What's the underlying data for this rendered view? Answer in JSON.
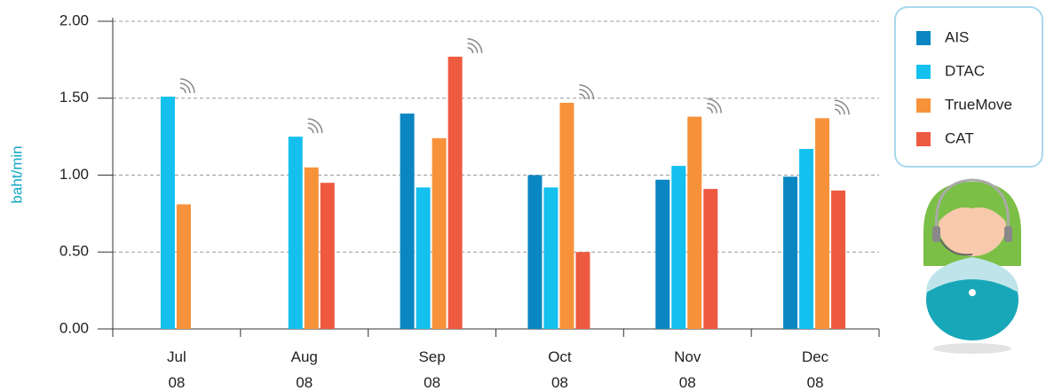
{
  "chart_data": {
    "type": "bar",
    "y_label": "baht/min",
    "categories": [
      "Jul 08",
      "Aug 08",
      "Sep 08",
      "Oct 08",
      "Nov 08",
      "Dec 08"
    ],
    "series": [
      {
        "name": "AIS",
        "color": "#0a86c2",
        "values": [
          null,
          null,
          1.4,
          1.0,
          0.97,
          0.99
        ]
      },
      {
        "name": "DTAC",
        "color": "#14c0ee",
        "values": [
          1.51,
          1.25,
          0.92,
          0.92,
          1.06,
          1.17
        ]
      },
      {
        "name": "TrueMove",
        "color": "#f7923a",
        "values": [
          0.81,
          1.05,
          1.24,
          1.47,
          1.38,
          1.37
        ]
      },
      {
        "name": "CAT",
        "color": "#ee5a40",
        "values": [
          null,
          0.95,
          1.77,
          0.5,
          0.91,
          0.9
        ]
      }
    ],
    "ylim": [
      0,
      2
    ],
    "yticks": [
      {
        "value": 0,
        "label": "0.00"
      },
      {
        "value": 0.5,
        "label": "0.50"
      },
      {
        "value": 1,
        "label": "1.00"
      },
      {
        "value": 1.5,
        "label": "1.50"
      },
      {
        "value": 2,
        "label": "2.00"
      }
    ],
    "grid": true
  }
}
